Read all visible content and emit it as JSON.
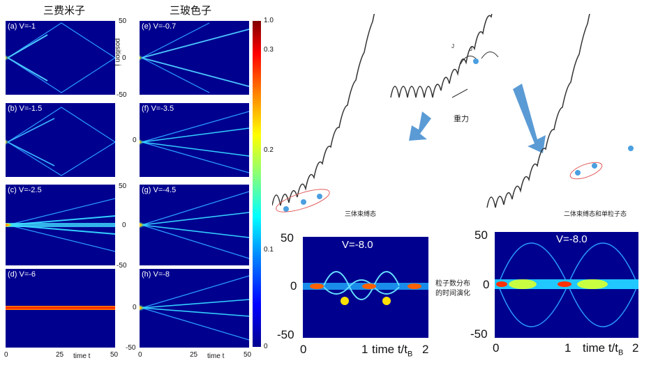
{
  "titles": {
    "fermions": "三费米子",
    "bosons": "三玻色子"
  },
  "panels": {
    "a": "(a) V=-1",
    "b": "(b) V=-1.5",
    "c": "(c) V=-2.5",
    "d": "(d) V=-6",
    "e": "(e) V=-0.7",
    "f": "(f) V=-3.5",
    "g": "(g) V=-4.5",
    "h": "(h) V=-8"
  },
  "axis": {
    "ytick_50": "50",
    "ytick_0": "0",
    "ytick_m50": "-50",
    "position_label": "position j",
    "xtick_0": "0",
    "xtick_25": "25",
    "xtick_50": "50",
    "time_label": "time t"
  },
  "colorbar": {
    "t10": "1.0",
    "t03": "0.3",
    "t02": "0.2",
    "t01": "0.1",
    "t0": "0"
  },
  "diagram": {
    "gravity": "重力",
    "three_bound": "三体束缚态",
    "two_bound_single": "二体束缚态和单粒子态",
    "j_label": "J",
    "density_caption": [
      "粒子数分布",
      "的时间演化"
    ]
  },
  "bottom": {
    "left_v": "V=-8.0",
    "right_v": "V=-8.0",
    "y50": "50",
    "y0": "0",
    "ym50": "-50",
    "x0": "0",
    "x1": "1",
    "x2": "2",
    "time_label": "time t/t",
    "time_sub": "B"
  },
  "colors": {
    "heat_bg": "#00008f",
    "arrow": "#5b9bd5",
    "particle": "#4a9fe0",
    "ellipse": "#e05a5a"
  }
}
